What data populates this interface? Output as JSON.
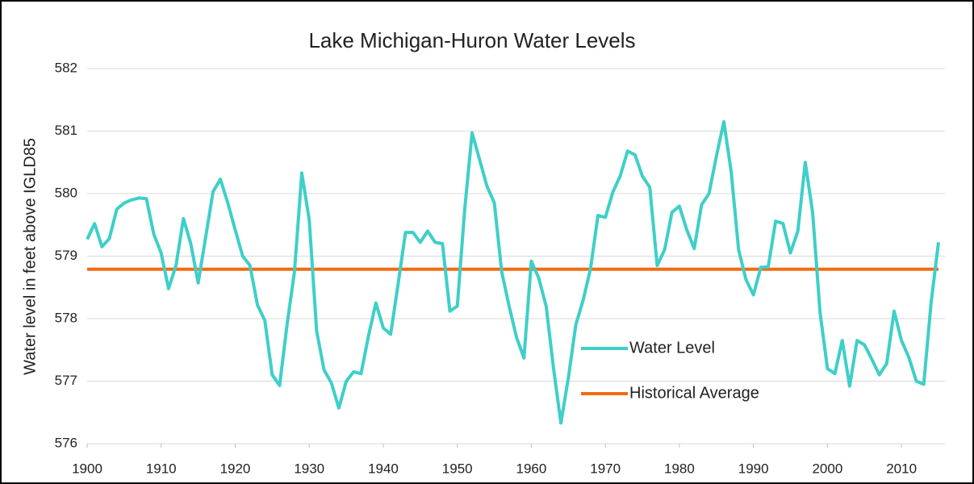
{
  "chart_data": {
    "type": "line",
    "title": "Lake Michigan-Huron Water Levels",
    "y_label": "Water level in feet above IGLD85",
    "xlim": [
      1900,
      2015
    ],
    "ylim": [
      576,
      582
    ],
    "xticks": [
      1900,
      1910,
      1920,
      1930,
      1940,
      1950,
      1960,
      1970,
      1980,
      1990,
      2000,
      2010
    ],
    "yticks": [
      576,
      577,
      578,
      579,
      580,
      581,
      582
    ],
    "grid": true,
    "series": [
      {
        "name": "Water Level",
        "color": "#3ecfc8",
        "x": [
          1900,
          1901,
          1902,
          1903,
          1904,
          1905,
          1906,
          1907,
          1908,
          1909,
          1910,
          1911,
          1912,
          1913,
          1914,
          1915,
          1916,
          1917,
          1918,
          1919,
          1920,
          1921,
          1922,
          1923,
          1924,
          1925,
          1926,
          1927,
          1928,
          1929,
          1930,
          1931,
          1932,
          1933,
          1934,
          1935,
          1936,
          1937,
          1938,
          1939,
          1940,
          1941,
          1942,
          1943,
          1944,
          1945,
          1946,
          1947,
          1948,
          1949,
          1950,
          1951,
          1952,
          1953,
          1954,
          1955,
          1956,
          1957,
          1958,
          1959,
          1960,
          1961,
          1962,
          1963,
          1964,
          1965,
          1966,
          1967,
          1968,
          1969,
          1970,
          1971,
          1972,
          1973,
          1974,
          1975,
          1976,
          1977,
          1978,
          1979,
          1980,
          1981,
          1982,
          1983,
          1984,
          1985,
          1986,
          1987,
          1988,
          1989,
          1990,
          1991,
          1992,
          1993,
          1994,
          1995,
          1996,
          1997,
          1998,
          1999,
          2000,
          2001,
          2002,
          2003,
          2004,
          2005,
          2006,
          2007,
          2008,
          2009,
          2010,
          2011,
          2012,
          2013,
          2014,
          2015
        ],
        "values": [
          579.27,
          579.52,
          579.15,
          579.28,
          579.75,
          579.85,
          579.9,
          579.93,
          579.92,
          579.35,
          579.05,
          578.48,
          578.85,
          579.6,
          579.2,
          578.57,
          579.3,
          580.03,
          580.23,
          579.85,
          579.42,
          579.0,
          578.85,
          578.22,
          577.97,
          577.1,
          576.93,
          577.9,
          578.75,
          580.33,
          579.58,
          577.8,
          577.18,
          576.97,
          576.57,
          577.0,
          577.15,
          577.12,
          577.72,
          578.25,
          577.85,
          577.75,
          578.55,
          579.38,
          579.38,
          579.22,
          579.4,
          579.22,
          579.2,
          578.12,
          578.2,
          579.75,
          580.97,
          580.55,
          580.12,
          579.85,
          578.75,
          578.2,
          577.7,
          577.37,
          578.92,
          578.65,
          578.2,
          577.2,
          576.33,
          577.05,
          577.9,
          578.3,
          578.8,
          579.65,
          579.62,
          580.02,
          580.28,
          580.68,
          580.62,
          580.28,
          580.1,
          578.85,
          579.1,
          579.7,
          579.8,
          579.42,
          579.12,
          579.82,
          580.0,
          580.6,
          581.15,
          580.35,
          579.1,
          578.62,
          578.38,
          578.82,
          578.83,
          579.56,
          579.52,
          579.05,
          579.4,
          580.5,
          579.7,
          578.1,
          577.2,
          577.12,
          577.65,
          576.92,
          577.65,
          577.58,
          577.35,
          577.1,
          577.28,
          578.12,
          577.65,
          577.38,
          577.0,
          576.95,
          578.25,
          579.22
        ]
      },
      {
        "name": "Historical Average",
        "color": "#f26b12",
        "x": [
          1900,
          2015
        ],
        "values": [
          578.79,
          578.79
        ]
      }
    ]
  }
}
